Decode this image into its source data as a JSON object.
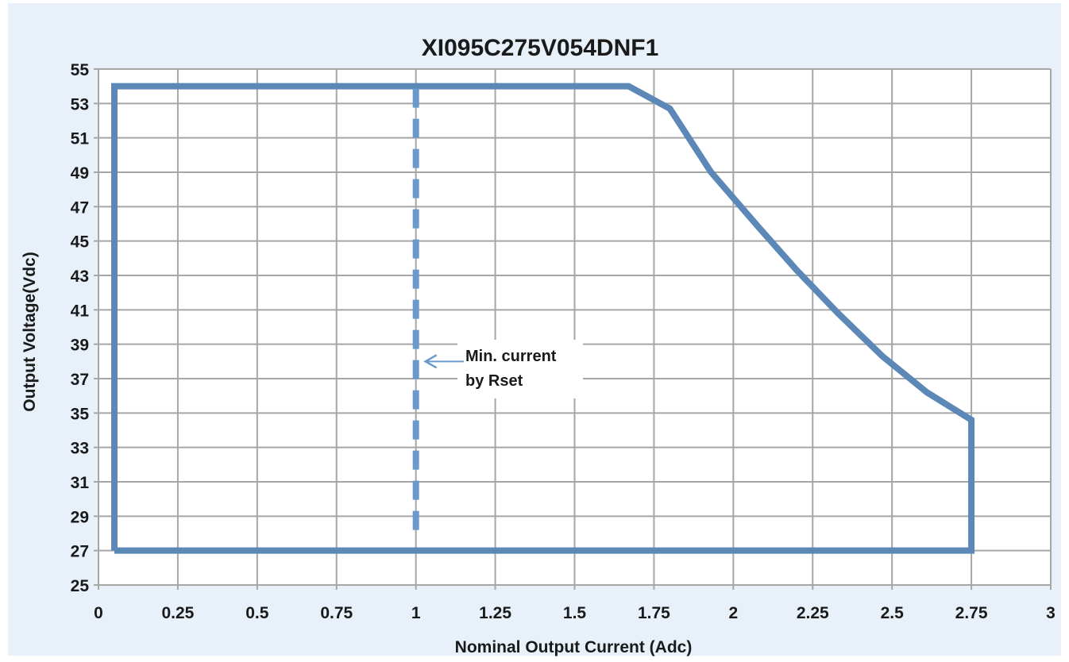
{
  "chart_data": {
    "type": "line",
    "title": "XI095C275V054DNF1",
    "xlabel": "Nominal Output Current (Adc)",
    "ylabel": "Output Voltage(Vdc)",
    "xlim": [
      0,
      3
    ],
    "ylim": [
      25,
      55
    ],
    "xticks": [
      0,
      0.25,
      0.5,
      0.75,
      1,
      1.25,
      1.5,
      1.75,
      2,
      2.25,
      2.5,
      2.75,
      3
    ],
    "xtick_labels": [
      "0",
      "0.25",
      "0.5",
      "0.75",
      "1",
      "1.25",
      "1.5",
      "1.75",
      "2",
      "2.25",
      "2.5",
      "2.75",
      "3"
    ],
    "yticks": [
      25,
      27,
      29,
      31,
      33,
      35,
      37,
      39,
      41,
      43,
      45,
      47,
      49,
      51,
      53,
      55
    ],
    "ytick_labels": [
      "25",
      "27",
      "29",
      "31",
      "33",
      "35",
      "37",
      "39",
      "41",
      "43",
      "45",
      "47",
      "49",
      "51",
      "53",
      "55"
    ],
    "grid": true,
    "series": [
      {
        "style": "solid",
        "color": "#5b88b6",
        "x": [
          0.05,
          0.05,
          1.67,
          1.8,
          1.93,
          2.08,
          2.2,
          2.33,
          2.47,
          2.61,
          2.75,
          2.75,
          0.05
        ],
        "y": [
          27,
          54,
          54,
          52.7,
          49,
          45.8,
          43.3,
          40.8,
          38.3,
          36.2,
          34.6,
          27,
          27
        ]
      },
      {
        "style": "dashed",
        "color": "#6a9acb",
        "x": [
          1,
          1
        ],
        "y": [
          28.2,
          54
        ]
      }
    ],
    "annotations": [
      {
        "text_lines": [
          "Min. current",
          "by Rset"
        ],
        "arrow_to": [
          1.03,
          38
        ]
      }
    ],
    "colors": {
      "background": "#e8f1fa",
      "plot_bg": "#ffffff",
      "grid": "#a6a6a6"
    }
  }
}
